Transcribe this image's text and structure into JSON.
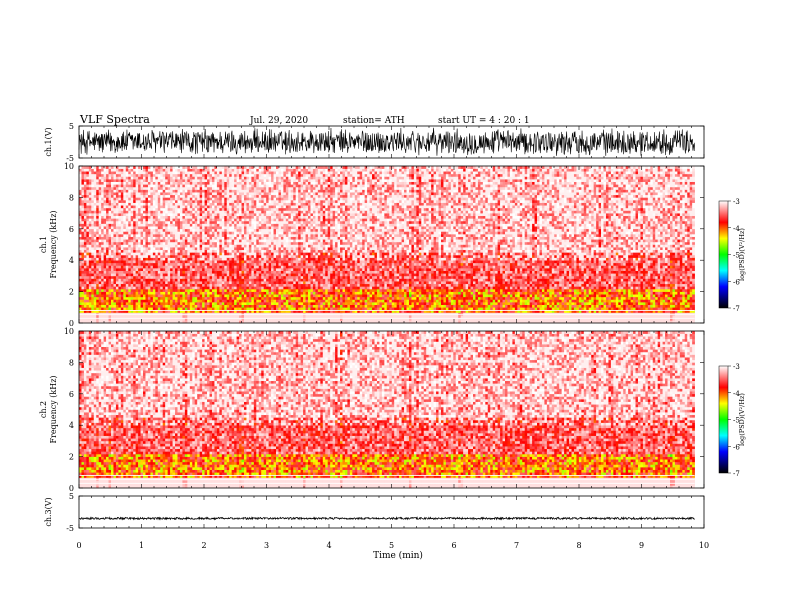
{
  "header": {
    "title": "VLF  Spectra",
    "date": "Jul.  29,  2020",
    "station": "station= ATH",
    "start": "start  UT  =   4  : 20 : 1"
  },
  "chart_data": [
    {
      "type": "line",
      "name": "ch1-waveform",
      "ylabel": "ch.1(V)",
      "ylim": [
        -5,
        5
      ],
      "yticks": [
        "5",
        "-5"
      ],
      "xlim": [
        0,
        10
      ],
      "x_series_end": 9.85,
      "amplitude_range": [
        -4.5,
        4.5
      ]
    },
    {
      "type": "heatmap",
      "name": "ch1-spectrogram",
      "ylabel": "ch.1\nFrequency  (kHz)",
      "ylim": [
        0,
        10
      ],
      "yticks": [
        "0",
        "2",
        "4",
        "6",
        "8",
        "10"
      ],
      "xlim": [
        0,
        10
      ],
      "x_series_end": 9.85,
      "colorbar": {
        "label": "log(PSD)(V²/Hz)",
        "range": [
          -7,
          -3
        ],
        "ticks": [
          "-3",
          "-4",
          "-5",
          "-6",
          "-7"
        ],
        "colors": [
          "#000000",
          "#0000ff",
          "#00ffff",
          "#00ff00",
          "#ffff00",
          "#ff0000",
          "#ffffff"
        ]
      },
      "features": {
        "low_band_khz": [
          0,
          2
        ],
        "band_level_min": -6,
        "high_band_level": -3.5,
        "notable_broadband_times_min": [
          0.3,
          0.5,
          1.7,
          2.6,
          3.6,
          4.2,
          5.3,
          6.1,
          9.5
        ]
      }
    },
    {
      "type": "heatmap",
      "name": "ch2-spectrogram",
      "ylabel": "ch.2\nFrequency  (kHz)",
      "ylim": [
        0,
        10
      ],
      "yticks": [
        "0",
        "2",
        "4",
        "6",
        "8",
        "10"
      ],
      "xlim": [
        0,
        10
      ],
      "x_series_end": 9.85,
      "colorbar": {
        "label": "log(PSD)(V²/Hz)",
        "range": [
          -7,
          -3
        ],
        "ticks": [
          "-3",
          "-4",
          "-5",
          "-6",
          "-7"
        ],
        "colors": [
          "#000000",
          "#0000ff",
          "#00ffff",
          "#00ff00",
          "#ffff00",
          "#ff0000",
          "#ffffff"
        ]
      },
      "features": {
        "low_band_khz": [
          0,
          2
        ],
        "band_level_min": -6,
        "high_band_level": -3.5,
        "notable_broadband_times_min": [
          0.3,
          0.5,
          1.7,
          2.6,
          3.6,
          4.2,
          5.3,
          6.1,
          9.5
        ]
      }
    },
    {
      "type": "line",
      "name": "ch3-waveform",
      "ylabel": "ch.3(V)",
      "ylim": [
        -5,
        5
      ],
      "yticks": [
        "5",
        "-5"
      ],
      "xlim": [
        0,
        10
      ],
      "x_series_end": 9.85,
      "amplitude_range": [
        -0.3,
        0.3
      ],
      "offset": -2.0
    }
  ],
  "xaxis": {
    "label": "Time  (min)",
    "ticks": [
      "0",
      "1",
      "2",
      "3",
      "4",
      "5",
      "6",
      "7",
      "8",
      "9",
      "10"
    ]
  }
}
